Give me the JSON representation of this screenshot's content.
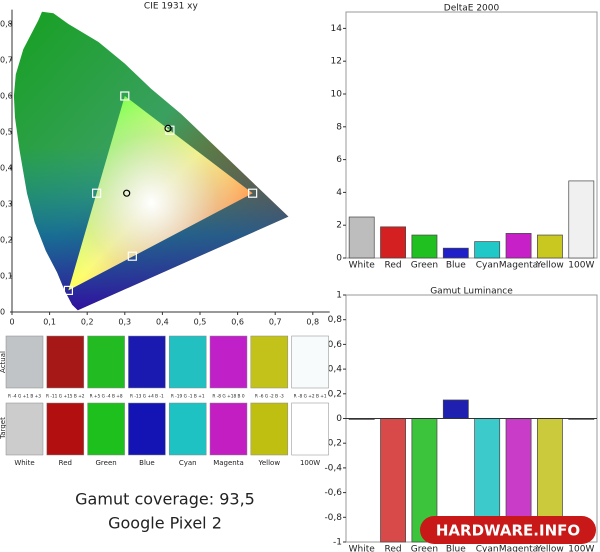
{
  "chart_data": [
    {
      "type": "scatter",
      "title": "CIE 1931 xy",
      "xlim": [
        0,
        0.845
      ],
      "ylim": [
        0,
        0.84
      ],
      "xticks": [
        0,
        {
          "value": 0.1,
          "label": "0,1"
        },
        {
          "value": 0.2,
          "label": "0,2"
        },
        {
          "value": 0.3,
          "label": "0,3"
        },
        {
          "value": 0.4,
          "label": "0,4"
        },
        {
          "value": 0.5,
          "label": "0,5"
        },
        {
          "value": 0.6,
          "label": "0,6"
        },
        {
          "value": 0.7,
          "label": "0,7"
        },
        {
          "value": 0.8,
          "label": "0,8"
        }
      ],
      "yticks": [
        0,
        {
          "value": 0.1,
          "label": "0,1"
        },
        {
          "value": 0.2,
          "label": "0,2"
        },
        {
          "value": 0.3,
          "label": "0,3"
        },
        {
          "value": 0.4,
          "label": "0,4"
        },
        {
          "value": 0.5,
          "label": "0,5"
        },
        {
          "value": 0.6,
          "label": "0,6"
        },
        {
          "value": 0.7,
          "label": "0,7"
        },
        {
          "value": 0.8,
          "label": "0,8"
        }
      ],
      "series": [
        {
          "marker": "square",
          "color": "#ffffff",
          "x": [
            0.64,
            0.3,
            0.15,
            0.225,
            0.32,
            0.42
          ],
          "values": [
            0.33,
            0.6,
            0.06,
            0.33,
            0.155,
            0.505
          ]
        },
        {
          "marker": "circle",
          "color": "#000000",
          "x": [
            0.305,
            0.415
          ],
          "values": [
            0.33,
            0.51
          ]
        }
      ]
    },
    {
      "type": "bar",
      "title": "DeltaE 2000",
      "categories": [
        "White",
        "Red",
        "Green",
        "Blue",
        "Cyan",
        "Magenta",
        "Yellow",
        "100W"
      ],
      "values": [
        2.5,
        1.9,
        1.4,
        0.6,
        1.0,
        1.5,
        1.4,
        4.7
      ],
      "colors": [
        "#bdbdbd",
        "#d42020",
        "#20c020",
        "#2020c8",
        "#20c8c8",
        "#c820c8",
        "#c8c820",
        "#f0f0f0"
      ],
      "ylim": [
        0,
        15
      ],
      "yticks": [
        0,
        2,
        4,
        6,
        8,
        10,
        12,
        14
      ]
    },
    {
      "type": "bar",
      "title": "Gamut Luminance",
      "categories": [
        "White",
        "Red",
        "Green",
        "Blue",
        "Cyan",
        "Magenta",
        "Yellow",
        "100W"
      ],
      "values": [
        0,
        -1,
        -1,
        0.15,
        -1,
        -1,
        -1,
        0
      ],
      "colors": [
        "#bdbdbd",
        "#d84a4a",
        "#3cc43c",
        "#2020b0",
        "#3ccaca",
        "#c83cc8",
        "#caca3c",
        "#f0f0f0"
      ],
      "ylim": [
        -1,
        1
      ],
      "yticks": [
        -1,
        {
          "value": -0.8,
          "label": "-0,8"
        },
        {
          "value": -0.6,
          "label": "-0,6"
        },
        {
          "value": -0.4,
          "label": "-0,4"
        },
        {
          "value": -0.2,
          "label": "-0,2"
        },
        0,
        {
          "value": 0.2,
          "label": "0,2"
        },
        {
          "value": 0.4,
          "label": "0,4"
        },
        {
          "value": 0.6,
          "label": "0,6"
        },
        {
          "value": 0.8,
          "label": "0,8"
        },
        1
      ]
    }
  ],
  "swatches": {
    "row_labels": [
      "Actual",
      "Target"
    ],
    "items": [
      {
        "label": "White",
        "deviation": "R -4 G +1 B +3",
        "actual": "#c0c4c6",
        "target": "#cccccc"
      },
      {
        "label": "Red",
        "deviation": "R -11 G +15 B +2",
        "actual": "#a61818",
        "target": "#b21010"
      },
      {
        "label": "Green",
        "deviation": "R +5 G -4 B +8",
        "actual": "#22bb22",
        "target": "#1ec01e"
      },
      {
        "label": "Blue",
        "deviation": "R -13 G +4 B -1",
        "actual": "#1a1ab0",
        "target": "#1414b4"
      },
      {
        "label": "Cyan",
        "deviation": "R -19 G -1 B +1",
        "actual": "#22c0c0",
        "target": "#1fc2c2"
      },
      {
        "label": "Magenta",
        "deviation": "R -8 G +18 B 0",
        "actual": "#c020c8",
        "target": "#c21ec2"
      },
      {
        "label": "Yellow",
        "deviation": "R -6 G -2 B -3",
        "actual": "#c2c21a",
        "target": "#bfbf12"
      },
      {
        "label": "100W",
        "deviation": "R -8 G +2 B +1",
        "actual": "#f8fbfb",
        "target": "#ffffff"
      }
    ]
  },
  "gamut_coverage": "Gamut coverage: 93,5",
  "device": "Google Pixel 2",
  "logo": "HARDWARE.INFO"
}
